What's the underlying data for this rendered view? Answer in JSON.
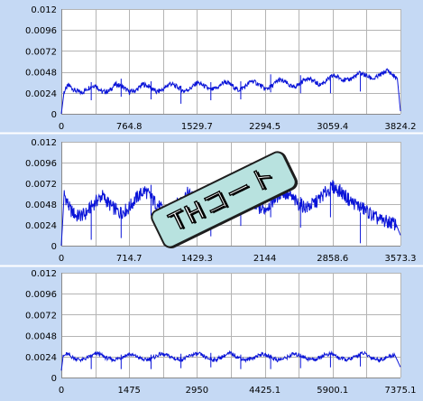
{
  "stamp": {
    "text": "THコート"
  },
  "colors": {
    "series": "#0a14d8",
    "background": "#c5d9f4",
    "plot": "#ffffff",
    "grid": "#b4b4b4"
  },
  "chart_data": [
    {
      "type": "line",
      "xticks": [
        "0",
        "764.8",
        "1529.7",
        "2294.5",
        "3059.4",
        "3824.2"
      ],
      "yticks": [
        "0",
        "0.0024",
        "0.0048",
        "0.0072",
        "0.0096",
        "0.012"
      ],
      "xlim": [
        0,
        3824.2
      ],
      "ylim": [
        0,
        0.012
      ],
      "grid": true,
      "series": [
        {
          "x": [
            0,
            30,
            80,
            150,
            230,
            310,
            383,
            460,
            537,
            613,
            690,
            767,
            843,
            920,
            997,
            1073,
            1150,
            1227,
            1303,
            1380,
            1457,
            1533,
            1610,
            1687,
            1763,
            1840,
            1917,
            1993,
            2070,
            2147,
            2223,
            2300,
            2377,
            2453,
            2530,
            2607,
            2683,
            2760,
            2837,
            2913,
            2990,
            3067,
            3143,
            3220,
            3297,
            3373,
            3450,
            3527,
            3603,
            3680,
            3740,
            3790,
            3824.2
          ],
          "y": [
            0,
            0.0025,
            0.0033,
            0.0027,
            0.0024,
            0.003,
            0.0033,
            0.0025,
            0.0026,
            0.0034,
            0.0031,
            0.0025,
            0.0027,
            0.0034,
            0.0031,
            0.0025,
            0.0028,
            0.0035,
            0.0031,
            0.0026,
            0.0029,
            0.0036,
            0.0032,
            0.0027,
            0.003,
            0.0037,
            0.0033,
            0.0027,
            0.0031,
            0.0038,
            0.0034,
            0.0028,
            0.0032,
            0.0039,
            0.0036,
            0.003,
            0.0034,
            0.0041,
            0.0038,
            0.0033,
            0.0038,
            0.0044,
            0.0041,
            0.0038,
            0.0042,
            0.0047,
            0.0043,
            0.004,
            0.0045,
            0.005,
            0.0044,
            0.004,
            0.0003
          ]
        }
      ]
    },
    {
      "type": "line",
      "xticks": [
        "0",
        "714.7",
        "1429.3",
        "2144",
        "2858.6",
        "3573.3"
      ],
      "yticks": [
        "0",
        "0.0024",
        "0.0048",
        "0.0072",
        "0.0096",
        "0.012"
      ],
      "xlim": [
        0,
        3573.3
      ],
      "ylim": [
        0,
        0.012
      ],
      "grid": true,
      "series": [
        {
          "x": [
            0,
            30,
            90,
            160,
            250,
            340,
            430,
            520,
            610,
            700,
            790,
            880,
            970,
            1060,
            1150,
            1240,
            1330,
            1420,
            1510,
            1600,
            1690,
            1780,
            1870,
            1960,
            2050,
            2140,
            2230,
            2320,
            2410,
            2500,
            2590,
            2680,
            2770,
            2860,
            2950,
            3040,
            3130,
            3220,
            3310,
            3400,
            3470,
            3530,
            3573.3
          ],
          "y": [
            0,
            0.006,
            0.0042,
            0.0034,
            0.0036,
            0.0048,
            0.0058,
            0.0046,
            0.0038,
            0.0042,
            0.0055,
            0.0064,
            0.0052,
            0.0042,
            0.004,
            0.005,
            0.006,
            0.0054,
            0.0045,
            0.004,
            0.0044,
            0.0056,
            0.0061,
            0.0052,
            0.0044,
            0.0042,
            0.0052,
            0.0062,
            0.0057,
            0.0048,
            0.0044,
            0.005,
            0.006,
            0.0068,
            0.0062,
            0.0052,
            0.0046,
            0.004,
            0.0032,
            0.0028,
            0.0027,
            0.0024,
            0.0012
          ]
        }
      ]
    },
    {
      "type": "line",
      "xticks": [
        "0",
        "1475",
        "2950",
        "4425.1",
        "5900.1",
        "7375.1"
      ],
      "yticks": [
        "0",
        "0.0024",
        "0.0048",
        "0.0072",
        "0.0096",
        "0.012"
      ],
      "xlim": [
        0,
        7375.1
      ],
      "ylim": [
        0,
        0.012
      ],
      "grid": true,
      "series": [
        {
          "x": [
            0,
            40,
            120,
            280,
            450,
            620,
            790,
            960,
            1130,
            1300,
            1470,
            1640,
            1810,
            1980,
            2150,
            2320,
            2490,
            2660,
            2830,
            3000,
            3170,
            3340,
            3510,
            3680,
            3850,
            4020,
            4190,
            4360,
            4530,
            4700,
            4870,
            5040,
            5210,
            5380,
            5550,
            5720,
            5890,
            6060,
            6230,
            6400,
            6570,
            6740,
            6910,
            7080,
            7250,
            7375.1
          ],
          "y": [
            0.0008,
            0.0024,
            0.0027,
            0.0022,
            0.002,
            0.0024,
            0.0028,
            0.0023,
            0.002,
            0.0023,
            0.0027,
            0.0024,
            0.002,
            0.0022,
            0.0027,
            0.0025,
            0.0021,
            0.0021,
            0.0026,
            0.0027,
            0.0022,
            0.002,
            0.0024,
            0.0028,
            0.0023,
            0.002,
            0.0023,
            0.0027,
            0.0024,
            0.002,
            0.0022,
            0.0027,
            0.0025,
            0.0021,
            0.0021,
            0.0026,
            0.0027,
            0.0022,
            0.002,
            0.0024,
            0.0028,
            0.0023,
            0.002,
            0.0023,
            0.0026,
            0.0012
          ]
        }
      ]
    }
  ]
}
